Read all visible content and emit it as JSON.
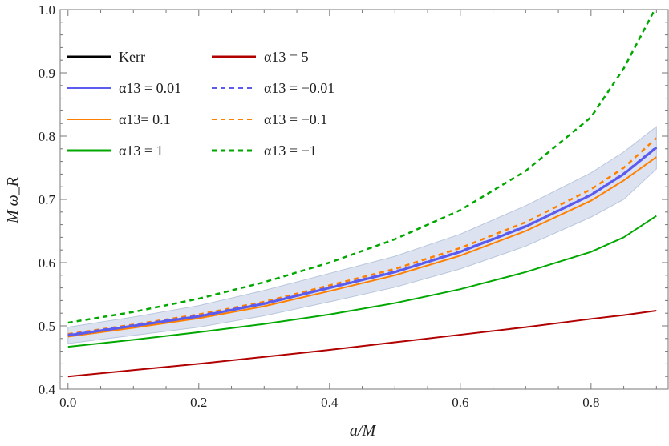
{
  "chart_data": {
    "type": "line",
    "title": "",
    "xlabel": "a/M",
    "ylabel": "M ω_R",
    "xlim": [
      -0.012,
      0.918
    ],
    "ylim": [
      0.4,
      1.0
    ],
    "xticks": [
      0.0,
      0.2,
      0.4,
      0.6,
      0.8
    ],
    "xtick_labels": [
      "0.0",
      "0.2",
      "0.4",
      "0.6",
      "0.8"
    ],
    "yticks": [
      0.4,
      0.5,
      0.6,
      0.7,
      0.8,
      0.9,
      1.0
    ],
    "ytick_labels": [
      "0.4",
      "0.5",
      "0.6",
      "0.7",
      "0.8",
      "0.9",
      "1.0"
    ],
    "grid": false,
    "legend_placement": "top-left",
    "x": [
      0.0,
      0.1,
      0.2,
      0.3,
      0.4,
      0.5,
      0.6,
      0.7,
      0.8,
      0.85,
      0.9
    ],
    "band": {
      "color": "#c9d3e6",
      "lower": [
        0.472,
        0.485,
        0.498,
        0.516,
        0.538,
        0.561,
        0.59,
        0.626,
        0.672,
        0.7,
        0.748
      ],
      "upper": [
        0.498,
        0.514,
        0.532,
        0.556,
        0.583,
        0.61,
        0.645,
        0.69,
        0.742,
        0.775,
        0.815
      ]
    },
    "series": [
      {
        "name": "Kerr",
        "color": "#000000",
        "dash": false,
        "values": [
          0.485,
          0.5,
          0.515,
          0.535,
          0.56,
          0.585,
          0.617,
          0.657,
          0.707,
          0.74,
          0.782
        ]
      },
      {
        "name": "α13 = 0.01",
        "color": "#5b5bf0",
        "dash": false,
        "values": [
          0.485,
          0.5,
          0.515,
          0.535,
          0.56,
          0.585,
          0.617,
          0.657,
          0.707,
          0.74,
          0.782
        ]
      },
      {
        "name": "α13= 0.1",
        "color": "#ff8000",
        "dash": false,
        "values": [
          0.483,
          0.497,
          0.512,
          0.531,
          0.555,
          0.58,
          0.611,
          0.65,
          0.698,
          0.73,
          0.767
        ]
      },
      {
        "name": "α13 = 1",
        "color": "#00a800",
        "dash": false,
        "values": [
          0.467,
          0.478,
          0.49,
          0.503,
          0.518,
          0.536,
          0.558,
          0.585,
          0.617,
          0.64,
          0.674
        ]
      },
      {
        "name": "α13 = 5",
        "color": "#b00000",
        "dash": false,
        "values": [
          0.42,
          0.43,
          0.44,
          0.451,
          0.462,
          0.474,
          0.486,
          0.498,
          0.511,
          0.517,
          0.524
        ]
      },
      {
        "name": "α13 = −0.01",
        "color": "#5b5bf0",
        "dash": true,
        "values": [
          0.486,
          0.501,
          0.516,
          0.536,
          0.561,
          0.586,
          0.618,
          0.658,
          0.708,
          0.741,
          0.783
        ]
      },
      {
        "name": "α13 = −0.1",
        "color": "#ff8000",
        "dash": true,
        "values": [
          0.487,
          0.502,
          0.518,
          0.538,
          0.564,
          0.59,
          0.623,
          0.664,
          0.716,
          0.75,
          0.797
        ]
      },
      {
        "name": "α13 = −1",
        "color": "#00a800",
        "dash": true,
        "values": [
          0.505,
          0.522,
          0.543,
          0.569,
          0.6,
          0.637,
          0.683,
          0.745,
          0.83,
          0.907,
          1.005
        ]
      }
    ]
  }
}
